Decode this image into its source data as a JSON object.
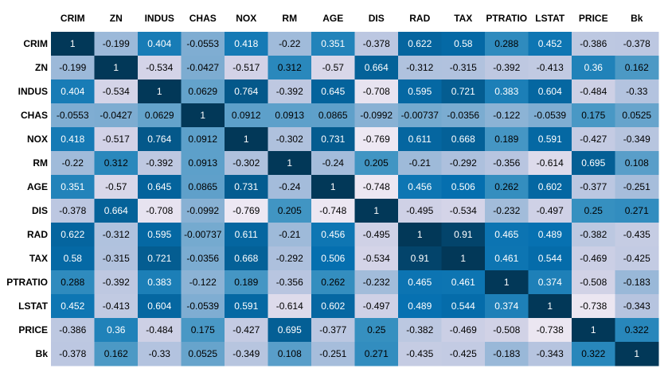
{
  "chart_data": {
    "type": "heatmap",
    "title": "",
    "colormap": "PuBu",
    "value_range": [
      -1,
      1
    ],
    "columns": [
      "CRIM",
      "ZN",
      "INDUS",
      "CHAS",
      "NOX",
      "RM",
      "AGE",
      "DIS",
      "RAD",
      "TAX",
      "PTRATIO",
      "LSTAT",
      "PRICE",
      "Bk"
    ],
    "rows": [
      "CRIM",
      "ZN",
      "INDUS",
      "CHAS",
      "NOX",
      "RM",
      "AGE",
      "DIS",
      "RAD",
      "TAX",
      "PTRATIO",
      "LSTAT",
      "PRICE",
      "Bk"
    ],
    "values": [
      [
        "1",
        "-0.199",
        "0.404",
        "-0.0553",
        "0.418",
        "-0.22",
        "0.351",
        "-0.378",
        "0.622",
        "0.58",
        "0.288",
        "0.452",
        "-0.386",
        "-0.378"
      ],
      [
        "-0.199",
        "1",
        "-0.534",
        "-0.0427",
        "-0.517",
        "0.312",
        "-0.57",
        "0.664",
        "-0.312",
        "-0.315",
        "-0.392",
        "-0.413",
        "0.36",
        "0.162"
      ],
      [
        "0.404",
        "-0.534",
        "1",
        "0.0629",
        "0.764",
        "-0.392",
        "0.645",
        "-0.708",
        "0.595",
        "0.721",
        "0.383",
        "0.604",
        "-0.484",
        "-0.33"
      ],
      [
        "-0.0553",
        "-0.0427",
        "0.0629",
        "1",
        "0.0912",
        "0.0913",
        "0.0865",
        "-0.0992",
        "-0.00737",
        "-0.0356",
        "-0.122",
        "-0.0539",
        "0.175",
        "0.0525"
      ],
      [
        "0.418",
        "-0.517",
        "0.764",
        "0.0912",
        "1",
        "-0.302",
        "0.731",
        "-0.769",
        "0.611",
        "0.668",
        "0.189",
        "0.591",
        "-0.427",
        "-0.349"
      ],
      [
        "-0.22",
        "0.312",
        "-0.392",
        "0.0913",
        "-0.302",
        "1",
        "-0.24",
        "0.205",
        "-0.21",
        "-0.292",
        "-0.356",
        "-0.614",
        "0.695",
        "0.108"
      ],
      [
        "0.351",
        "-0.57",
        "0.645",
        "0.0865",
        "0.731",
        "-0.24",
        "1",
        "-0.748",
        "0.456",
        "0.506",
        "0.262",
        "0.602",
        "-0.377",
        "-0.251"
      ],
      [
        "-0.378",
        "0.664",
        "-0.708",
        "-0.0992",
        "-0.769",
        "0.205",
        "-0.748",
        "1",
        "-0.495",
        "-0.534",
        "-0.232",
        "-0.497",
        "0.25",
        "0.271"
      ],
      [
        "0.622",
        "-0.312",
        "0.595",
        "-0.00737",
        "0.611",
        "-0.21",
        "0.456",
        "-0.495",
        "1",
        "0.91",
        "0.465",
        "0.489",
        "-0.382",
        "-0.435"
      ],
      [
        "0.58",
        "-0.315",
        "0.721",
        "-0.0356",
        "0.668",
        "-0.292",
        "0.506",
        "-0.534",
        "0.91",
        "1",
        "0.461",
        "0.544",
        "-0.469",
        "-0.425"
      ],
      [
        "0.288",
        "-0.392",
        "0.383",
        "-0.122",
        "0.189",
        "-0.356",
        "0.262",
        "-0.232",
        "0.465",
        "0.461",
        "1",
        "0.374",
        "-0.508",
        "-0.183"
      ],
      [
        "0.452",
        "-0.413",
        "0.604",
        "-0.0539",
        "0.591",
        "-0.614",
        "0.602",
        "-0.497",
        "0.489",
        "0.544",
        "0.374",
        "1",
        "-0.738",
        "-0.343"
      ],
      [
        "-0.386",
        "0.36",
        "-0.484",
        "0.175",
        "-0.427",
        "0.695",
        "-0.377",
        "0.25",
        "-0.382",
        "-0.469",
        "-0.508",
        "-0.738",
        "1",
        "0.322"
      ],
      [
        "-0.378",
        "0.162",
        "-0.33",
        "0.0525",
        "-0.349",
        "0.108",
        "-0.251",
        "0.271",
        "-0.435",
        "-0.425",
        "-0.183",
        "-0.343",
        "0.322",
        "1"
      ]
    ]
  }
}
